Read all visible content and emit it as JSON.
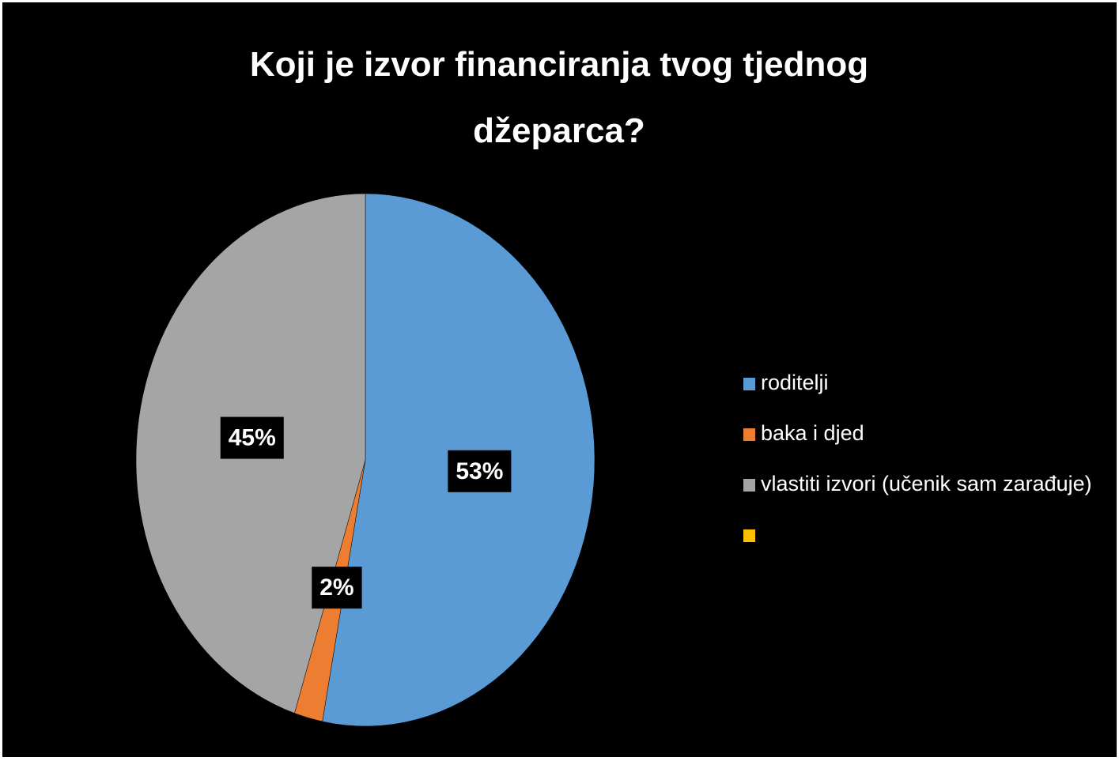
{
  "chart_data": {
    "type": "pie",
    "title": "Koji je izvor financiranja tvog tjednog džeparca?",
    "categories": [
      "roditelji",
      "baka i djed",
      "vlastiti izvori (učenik sam zarađuje)",
      null
    ],
    "values": [
      53,
      2,
      45,
      0
    ],
    "value_labels": [
      "53%",
      "2%",
      "45%",
      null
    ],
    "colors": [
      "#5b9bd5",
      "#ed7d31",
      "#a5a5a5",
      "#ffc000"
    ],
    "legend": "right"
  }
}
